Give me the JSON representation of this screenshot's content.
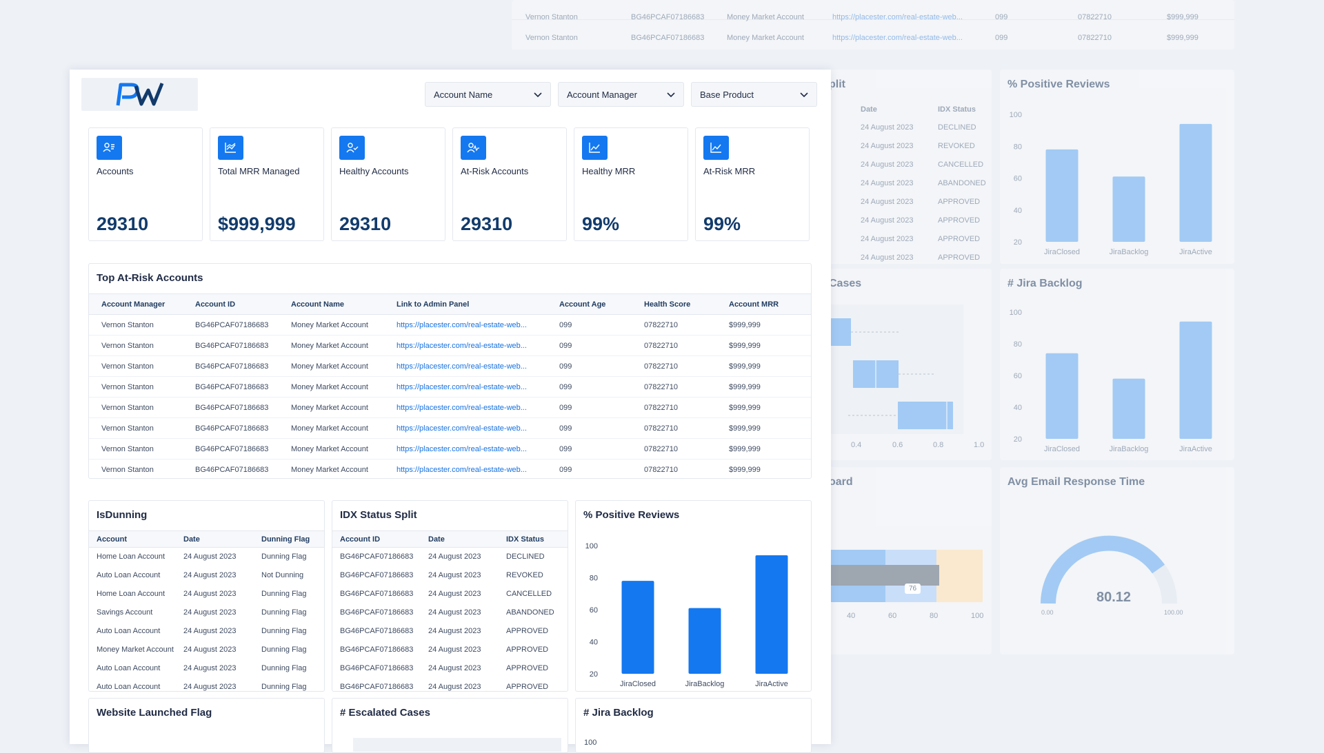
{
  "filters": [
    "Account Name",
    "Account Manager",
    "Base Product"
  ],
  "kpis": [
    {
      "label": "Accounts",
      "value": "29310",
      "icon": "user-list-icon"
    },
    {
      "label": "Total MRR Managed",
      "value": "$999,999",
      "icon": "line-chart-icon"
    },
    {
      "label": "Healthy Accounts",
      "value": "29310",
      "icon": "user-check-icon"
    },
    {
      "label": "At-Risk Accounts",
      "value": "29310",
      "icon": "user-pulse-icon"
    },
    {
      "label": "Healthy MRR",
      "value": "99%",
      "icon": "trend-chart-icon"
    },
    {
      "label": "At-Risk MRR",
      "value": "99%",
      "icon": "trend-chart-icon"
    }
  ],
  "top_at_risk": {
    "title": "Top At-Risk Accounts",
    "headers": [
      "Account Manager",
      "Account ID",
      "Account Name",
      "Link to Admin Panel",
      "Account Age",
      "Health Score",
      "Account MRR"
    ],
    "row": {
      "manager": "Vernon Stanton",
      "id": "BG46PCAF07186683",
      "name": "Money Market Account",
      "link": "https://placester.com/real-estate-web...",
      "age": "099",
      "score": "07822710",
      "mrr": "$999,999"
    }
  },
  "isdunning": {
    "title": "IsDunning",
    "headers": [
      "Account",
      "Date",
      "Dunning Flag"
    ],
    "rows": [
      [
        "Home Loan Account",
        "24 August 2023",
        "Dunning Flag"
      ],
      [
        "Auto Loan Account",
        "24 August 2023",
        "Not Dunning"
      ],
      [
        "Home Loan Account",
        "24 August 2023",
        "Dunning Flag"
      ],
      [
        "Savings Account",
        "24 August 2023",
        "Dunning Flag"
      ],
      [
        "Auto Loan Account",
        "24 August 2023",
        "Dunning Flag"
      ],
      [
        "Money Market Account",
        "24 August 2023",
        "Dunning Flag"
      ],
      [
        "Auto Loan Account",
        "24 August 2023",
        "Dunning Flag"
      ],
      [
        "Auto Loan Account",
        "24 August 2023",
        "Dunning Flag"
      ]
    ]
  },
  "idx": {
    "title": "IDX Status Split",
    "headers": [
      "Account ID",
      "Date",
      "IDX Status"
    ],
    "rows": [
      [
        "BG46PCAF07186683",
        "24 August 2023",
        "DECLINED"
      ],
      [
        "BG46PCAF07186683",
        "24 August 2023",
        "REVOKED"
      ],
      [
        "BG46PCAF07186683",
        "24 August 2023",
        "CANCELLED"
      ],
      [
        "BG46PCAF07186683",
        "24 August 2023",
        "ABANDONED"
      ],
      [
        "BG46PCAF07186683",
        "24 August 2023",
        "APPROVED"
      ],
      [
        "BG46PCAF07186683",
        "24 August 2023",
        "APPROVED"
      ],
      [
        "BG46PCAF07186683",
        "24 August 2023",
        "APPROVED"
      ],
      [
        "BG46PCAF07186683",
        "24 August 2023",
        "APPROVED"
      ]
    ]
  },
  "reviews_title": "% Positive Reviews",
  "bottom_titles": {
    "website": "Website Launched Flag",
    "escalated": "# Escalated Cases",
    "jira": "# Jira Backlog",
    "jira_tick": "100"
  },
  "bg": {
    "reviews_title": "% Positive Reviews",
    "jira_title": "# Jira Backlog",
    "cases_title": "Cases",
    "board_title": "oard",
    "email_title": "Avg Email Response Time",
    "gauge_value": "80.12",
    "gauge_min": "0.00",
    "gauge_max": "100.00",
    "bullet_value": "76",
    "bullet_ticks": [
      "40",
      "60",
      "80",
      "100"
    ],
    "box_ticks": [
      "0.4",
      "0.6",
      "0.8",
      "1.0"
    ],
    "split_title": "plit",
    "split_headers": [
      "Date",
      "IDX Status"
    ],
    "split_statuses": [
      "DECLINED",
      "REVOKED",
      "CANCELLED",
      "ABANDONED",
      "APPROVED",
      "APPROVED",
      "APPROVED",
      "APPROVED"
    ]
  },
  "chart_data": [
    {
      "type": "bar",
      "title": "% Positive Reviews",
      "categories": [
        "JiraClosed",
        "JiraBacklog",
        "JiraActive"
      ],
      "values": [
        78,
        61,
        94
      ],
      "ylim": [
        20,
        100
      ],
      "yticks": [
        20,
        40,
        60,
        80,
        100
      ]
    },
    {
      "type": "bar",
      "title": "# Jira Backlog",
      "categories": [
        "JiraClosed",
        "JiraBacklog",
        "JiraActive"
      ],
      "values": [
        74,
        58,
        94
      ],
      "ylim": [
        20,
        100
      ],
      "yticks": [
        20,
        40,
        60,
        80,
        100
      ]
    }
  ]
}
